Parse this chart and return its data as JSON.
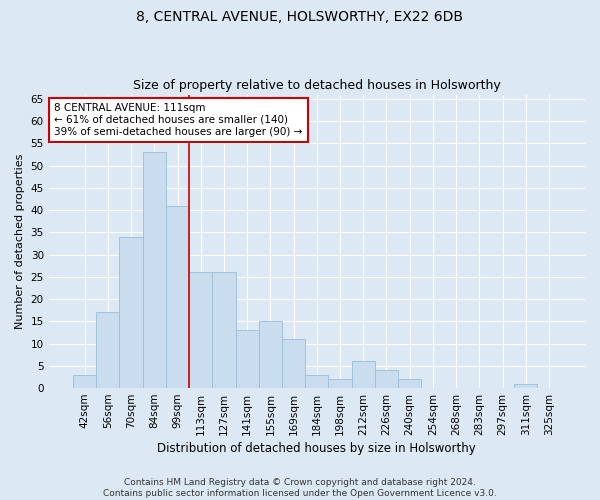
{
  "title": "8, CENTRAL AVENUE, HOLSWORTHY, EX22 6DB",
  "subtitle": "Size of property relative to detached houses in Holsworthy",
  "xlabel": "Distribution of detached houses by size in Holsworthy",
  "ylabel": "Number of detached properties",
  "categories": [
    "42sqm",
    "56sqm",
    "70sqm",
    "84sqm",
    "99sqm",
    "113sqm",
    "127sqm",
    "141sqm",
    "155sqm",
    "169sqm",
    "184sqm",
    "198sqm",
    "212sqm",
    "226sqm",
    "240sqm",
    "254sqm",
    "268sqm",
    "283sqm",
    "297sqm",
    "311sqm",
    "325sqm"
  ],
  "values": [
    3,
    17,
    34,
    53,
    41,
    26,
    26,
    13,
    15,
    11,
    3,
    2,
    6,
    4,
    2,
    0,
    0,
    0,
    0,
    1,
    0
  ],
  "bar_color": "#c9ddef",
  "bar_edge_color": "#9bbdd6",
  "vline_x_index": 5,
  "vline_color": "#cc0000",
  "annotation_line1": "8 CENTRAL AVENUE: 111sqm",
  "annotation_line2": "← 61% of detached houses are smaller (140)",
  "annotation_line3": "39% of semi-detached houses are larger (90) →",
  "annotation_box_color": "white",
  "annotation_box_edge_color": "#cc0000",
  "ylim": [
    0,
    66
  ],
  "yticks": [
    0,
    5,
    10,
    15,
    20,
    25,
    30,
    35,
    40,
    45,
    50,
    55,
    60,
    65
  ],
  "background_color": "#dce9f5",
  "grid_color": "white",
  "footer_line1": "Contains HM Land Registry data © Crown copyright and database right 2024.",
  "footer_line2": "Contains public sector information licensed under the Open Government Licence v3.0.",
  "title_fontsize": 10,
  "subtitle_fontsize": 9,
  "xlabel_fontsize": 8.5,
  "ylabel_fontsize": 8,
  "tick_fontsize": 7.5,
  "footer_fontsize": 6.5,
  "annotation_fontsize": 7.5
}
